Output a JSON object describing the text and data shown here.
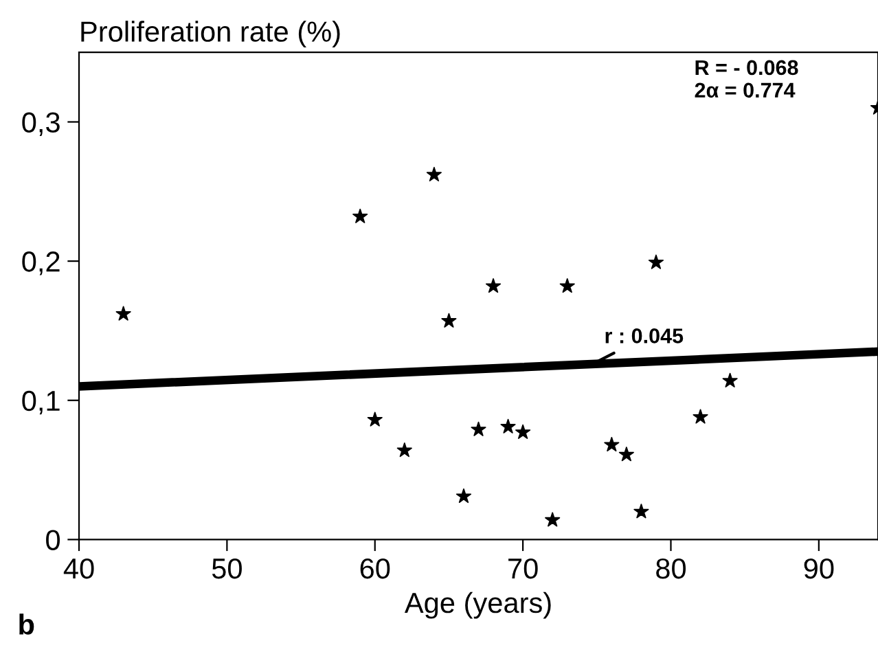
{
  "chart_data": {
    "type": "scatter",
    "xlabel": "Age (years)",
    "ylabel": "Proliferation rate (%)",
    "xlim": [
      40,
      94
    ],
    "ylim": [
      0,
      0.35
    ],
    "xticks": [
      40,
      50,
      60,
      70,
      80,
      90
    ],
    "yticks": [
      {
        "value": 0,
        "label": "0"
      },
      {
        "value": 0.1,
        "label": "0,1"
      },
      {
        "value": 0.2,
        "label": "0,2"
      },
      {
        "value": 0.3,
        "label": "0,3"
      }
    ],
    "grid": false,
    "legend": false,
    "series": [
      {
        "marker": "star",
        "color": "#000000",
        "x": [
          43,
          59,
          64,
          60,
          62,
          65,
          66,
          67,
          68,
          69,
          70,
          72,
          73,
          76,
          77,
          78,
          79,
          82,
          84,
          94
        ],
        "values": [
          0.162,
          0.232,
          0.262,
          0.086,
          0.064,
          0.157,
          0.031,
          0.079,
          0.182,
          0.081,
          0.077,
          0.014,
          0.182,
          0.068,
          0.061,
          0.02,
          0.199,
          0.088,
          0.114,
          0.31
        ]
      },
      {
        "type": "line",
        "marker": "none",
        "color": "#000000",
        "x": [
          40,
          94
        ],
        "values": [
          0.11,
          0.135
        ]
      }
    ],
    "annotations": [
      {
        "text": "r : 0.045",
        "x": 74.5,
        "y": 0.125
      },
      "R = - 0.068\n2α = 0.774",
      "b"
    ]
  }
}
